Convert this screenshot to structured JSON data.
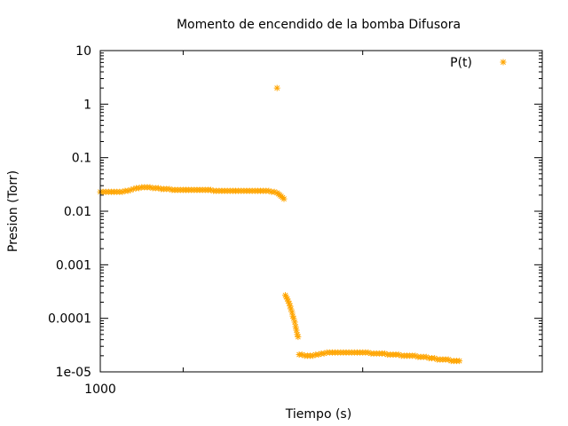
{
  "chart_data": {
    "type": "scatter",
    "title": "Momento de encendido de la bomba Difusora",
    "xlabel": "Tiempo (s)",
    "ylabel": "Presion (Torr)",
    "y_scale": "log",
    "ylim": [
      1e-05,
      10
    ],
    "xlim": [
      1000,
      2600
    ],
    "x_tick_labels": [
      {
        "value": 1000,
        "label": "1000"
      }
    ],
    "x_minor_ticks": [
      1300,
      1950
    ],
    "y_tick_labels": [
      {
        "value": 10,
        "label": "10"
      },
      {
        "value": 1,
        "label": "1"
      },
      {
        "value": 0.1,
        "label": "0.1"
      },
      {
        "value": 0.01,
        "label": "0.01"
      },
      {
        "value": 0.001,
        "label": "0.001"
      },
      {
        "value": 0.0001,
        "label": "0.0001"
      },
      {
        "value": 1e-05,
        "label": "1e-05"
      }
    ],
    "grid": false,
    "legend_position": "top-right",
    "marker": "asterisk",
    "series": [
      {
        "name": "P(t)",
        "color": "#ffa500",
        "points": [
          [
            1000,
            0.023
          ],
          [
            1010,
            0.023
          ],
          [
            1020,
            0.023
          ],
          [
            1030,
            0.023
          ],
          [
            1040,
            0.023
          ],
          [
            1050,
            0.023
          ],
          [
            1060,
            0.023
          ],
          [
            1070,
            0.023
          ],
          [
            1080,
            0.023
          ],
          [
            1090,
            0.024
          ],
          [
            1100,
            0.024
          ],
          [
            1110,
            0.025
          ],
          [
            1120,
            0.026
          ],
          [
            1130,
            0.027
          ],
          [
            1140,
            0.027
          ],
          [
            1150,
            0.028
          ],
          [
            1160,
            0.028
          ],
          [
            1170,
            0.028
          ],
          [
            1180,
            0.028
          ],
          [
            1190,
            0.027
          ],
          [
            1200,
            0.027
          ],
          [
            1210,
            0.027
          ],
          [
            1220,
            0.026
          ],
          [
            1230,
            0.026
          ],
          [
            1240,
            0.026
          ],
          [
            1250,
            0.026
          ],
          [
            1260,
            0.025
          ],
          [
            1270,
            0.025
          ],
          [
            1280,
            0.025
          ],
          [
            1290,
            0.025
          ],
          [
            1300,
            0.025
          ],
          [
            1310,
            0.025
          ],
          [
            1320,
            0.025
          ],
          [
            1330,
            0.025
          ],
          [
            1340,
            0.025
          ],
          [
            1350,
            0.025
          ],
          [
            1360,
            0.025
          ],
          [
            1370,
            0.025
          ],
          [
            1380,
            0.025
          ],
          [
            1390,
            0.025
          ],
          [
            1400,
            0.025
          ],
          [
            1410,
            0.024
          ],
          [
            1420,
            0.024
          ],
          [
            1430,
            0.024
          ],
          [
            1440,
            0.024
          ],
          [
            1450,
            0.024
          ],
          [
            1460,
            0.024
          ],
          [
            1470,
            0.024
          ],
          [
            1480,
            0.024
          ],
          [
            1490,
            0.024
          ],
          [
            1500,
            0.024
          ],
          [
            1510,
            0.024
          ],
          [
            1520,
            0.024
          ],
          [
            1530,
            0.024
          ],
          [
            1540,
            0.024
          ],
          [
            1550,
            0.024
          ],
          [
            1560,
            0.024
          ],
          [
            1570,
            0.024
          ],
          [
            1580,
            0.024
          ],
          [
            1590,
            0.024
          ],
          [
            1600,
            0.024
          ],
          [
            1610,
            0.024
          ],
          [
            1620,
            0.023
          ],
          [
            1630,
            0.023
          ],
          [
            1640,
            0.022
          ],
          [
            1645,
            0.021
          ],
          [
            1650,
            0.02
          ],
          [
            1655,
            0.019
          ],
          [
            1660,
            0.018
          ],
          [
            1665,
            0.017
          ],
          [
            1640,
            2.0
          ],
          [
            1670,
            0.00027
          ],
          [
            1673,
            0.00025
          ],
          [
            1677,
            0.00023
          ],
          [
            1680,
            0.00021
          ],
          [
            1684,
            0.00019
          ],
          [
            1687,
            0.00017
          ],
          [
            1690,
            0.00015
          ],
          [
            1694,
            0.00013
          ],
          [
            1697,
            0.00011
          ],
          [
            1700,
            0.0001
          ],
          [
            1704,
            8.5e-05
          ],
          [
            1707,
            7e-05
          ],
          [
            1710,
            6e-05
          ],
          [
            1713,
            5e-05
          ],
          [
            1716,
            4.5e-05
          ],
          [
            1720,
            2.1e-05
          ],
          [
            1730,
            2.1e-05
          ],
          [
            1740,
            2e-05
          ],
          [
            1750,
            2e-05
          ],
          [
            1760,
            2e-05
          ],
          [
            1770,
            2e-05
          ],
          [
            1780,
            2.1e-05
          ],
          [
            1790,
            2.1e-05
          ],
          [
            1800,
            2.2e-05
          ],
          [
            1810,
            2.2e-05
          ],
          [
            1820,
            2.3e-05
          ],
          [
            1830,
            2.3e-05
          ],
          [
            1840,
            2.3e-05
          ],
          [
            1850,
            2.3e-05
          ],
          [
            1860,
            2.3e-05
          ],
          [
            1870,
            2.3e-05
          ],
          [
            1880,
            2.3e-05
          ],
          [
            1890,
            2.3e-05
          ],
          [
            1900,
            2.3e-05
          ],
          [
            1910,
            2.3e-05
          ],
          [
            1920,
            2.3e-05
          ],
          [
            1930,
            2.3e-05
          ],
          [
            1940,
            2.3e-05
          ],
          [
            1950,
            2.3e-05
          ],
          [
            1960,
            2.3e-05
          ],
          [
            1970,
            2.3e-05
          ],
          [
            1980,
            2.2e-05
          ],
          [
            1990,
            2.2e-05
          ],
          [
            2000,
            2.2e-05
          ],
          [
            2010,
            2.2e-05
          ],
          [
            2020,
            2.2e-05
          ],
          [
            2030,
            2.2e-05
          ],
          [
            2040,
            2.1e-05
          ],
          [
            2050,
            2.1e-05
          ],
          [
            2060,
            2.1e-05
          ],
          [
            2070,
            2.1e-05
          ],
          [
            2080,
            2.1e-05
          ],
          [
            2090,
            2e-05
          ],
          [
            2100,
            2e-05
          ],
          [
            2110,
            2e-05
          ],
          [
            2120,
            2e-05
          ],
          [
            2130,
            2e-05
          ],
          [
            2140,
            2e-05
          ],
          [
            2150,
            1.9e-05
          ],
          [
            2160,
            1.9e-05
          ],
          [
            2170,
            1.9e-05
          ],
          [
            2180,
            1.9e-05
          ],
          [
            2190,
            1.8e-05
          ],
          [
            2200,
            1.8e-05
          ],
          [
            2210,
            1.8e-05
          ],
          [
            2220,
            1.7e-05
          ],
          [
            2230,
            1.7e-05
          ],
          [
            2240,
            1.7e-05
          ],
          [
            2250,
            1.7e-05
          ],
          [
            2260,
            1.7e-05
          ],
          [
            2270,
            1.6e-05
          ],
          [
            2280,
            1.6e-05
          ],
          [
            2290,
            1.6e-05
          ],
          [
            2300,
            1.6e-05
          ]
        ]
      }
    ]
  }
}
